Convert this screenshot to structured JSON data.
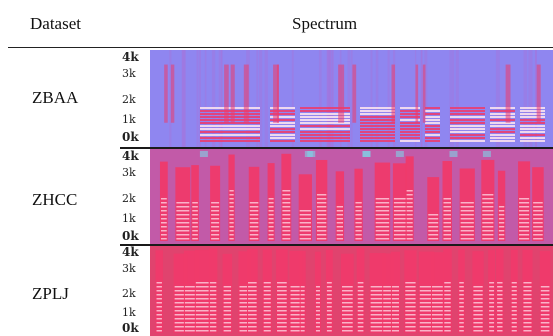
{
  "table": {
    "header_dataset": "Dataset",
    "header_spectrum": "Spectrum",
    "rows": [
      {
        "dataset": "ZBAA",
        "ticks": [
          "4k",
          "3k",
          "2k",
          "1k",
          "0k"
        ]
      },
      {
        "dataset": "ZHCC",
        "ticks": [
          "4k",
          "3k",
          "2k",
          "1k",
          "0k"
        ]
      },
      {
        "dataset": "ZPLJ",
        "ticks": [
          "4k",
          "3k",
          "2k",
          "1k",
          "0k"
        ]
      }
    ]
  },
  "colors": {
    "background_blue": "#8f86f0",
    "energy_red": "#ef3a6a",
    "peak_white": "#ffe6ef",
    "noise_cyan": "#7fd2e8"
  }
}
